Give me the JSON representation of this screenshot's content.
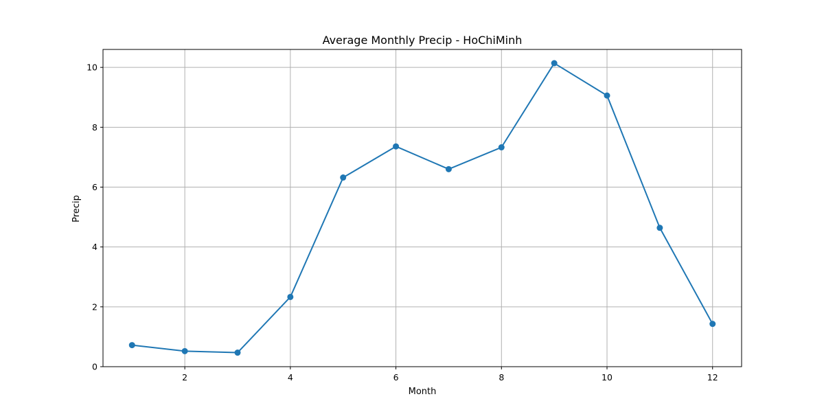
{
  "chart_data": {
    "type": "line",
    "title": "Average Monthly Precip - HoChiMinh",
    "xlabel": "Month",
    "ylabel": "Precip",
    "xlim": [
      0.45,
      12.55
    ],
    "ylim": [
      0,
      10.6
    ],
    "grid": true,
    "legend": "none",
    "x_ticks": [
      2,
      4,
      6,
      8,
      10,
      12
    ],
    "y_ticks": [
      0,
      2,
      4,
      6,
      8,
      10
    ],
    "color": "#1f77b4",
    "marker": "circle",
    "series": [
      {
        "x": [
          1,
          2,
          3,
          4,
          5,
          6,
          7,
          8,
          9,
          10,
          11,
          12
        ],
        "values": [
          0.72,
          0.52,
          0.47,
          2.33,
          6.32,
          7.36,
          6.6,
          7.33,
          10.14,
          9.06,
          4.64,
          1.43
        ]
      }
    ]
  }
}
